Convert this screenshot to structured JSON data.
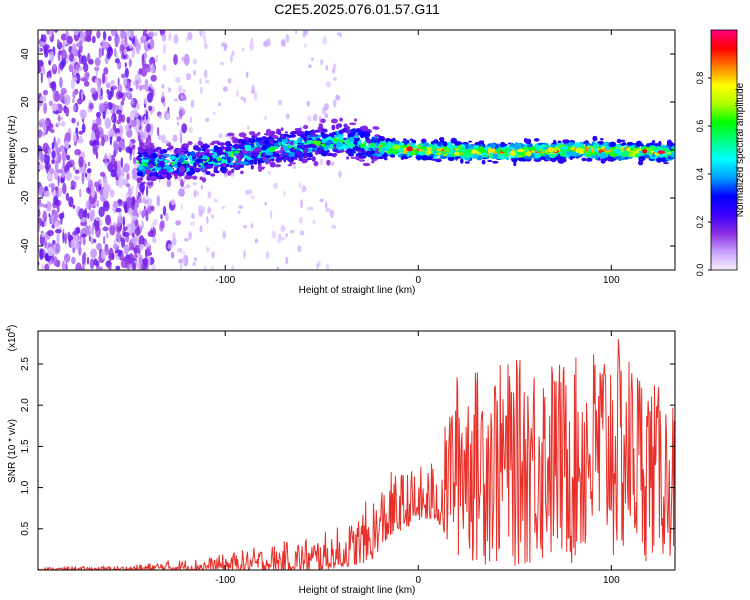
{
  "title": "C2E5.2025.076.01.57.G11",
  "chart_data": [
    {
      "type": "heatmap",
      "xlabel": "Height of straight line (km)",
      "ylabel": "Frequency (Hz)",
      "xlim": [
        -197,
        133
      ],
      "ylim": [
        -50,
        50
      ],
      "xticks": [
        -100,
        0,
        100
      ],
      "yticks": [
        -40,
        -20,
        0,
        20,
        40
      ],
      "colorbar": {
        "label": "Normalized spectral amplitude",
        "range": [
          0,
          1
        ],
        "ticks": [
          0.0,
          0.2,
          0.4,
          0.6,
          0.8
        ],
        "colormap": [
          "#f8f0ff",
          "#c8a0ff",
          "#8a2be2",
          "#3a00ff",
          "#0000ff",
          "#00a0ff",
          "#00ffff",
          "#00ff80",
          "#00ff00",
          "#b0ff00",
          "#ffff00",
          "#ff8000",
          "#ff0000",
          "#ff0080"
        ]
      },
      "ridge": [
        {
          "x": -190,
          "y": 0
        },
        {
          "x": -140,
          "y": -6
        },
        {
          "x": -120,
          "y": -5
        },
        {
          "x": -100,
          "y": -3
        },
        {
          "x": -80,
          "y": 0
        },
        {
          "x": -60,
          "y": 2
        },
        {
          "x": -40,
          "y": 4
        },
        {
          "x": -30,
          "y": 3
        },
        {
          "x": -20,
          "y": 1
        },
        {
          "x": 0,
          "y": 0
        },
        {
          "x": 40,
          "y": -1
        },
        {
          "x": 80,
          "y": 0
        },
        {
          "x": 133,
          "y": -1
        }
      ]
    },
    {
      "type": "line",
      "xlabel": "Height of straight line (km)",
      "ylabel": "SNR (10 * v/v)",
      "multiplier_label": "(x10",
      "multiplier_exp": "4",
      "multiplier_close": ")",
      "xlim": [
        -197,
        133
      ],
      "ylim": [
        0,
        2.9
      ],
      "xticks": [
        -100,
        0,
        100
      ],
      "yticks": [
        0.5,
        1.0,
        1.5,
        2.0,
        2.5
      ],
      "series": [
        {
          "color": "#e8302a",
          "envelope": [
            {
              "x": -197,
              "min": 0.0,
              "max": 0.03
            },
            {
              "x": -150,
              "min": 0.0,
              "max": 0.05
            },
            {
              "x": -130,
              "min": 0.0,
              "max": 0.12
            },
            {
              "x": -110,
              "min": 0.0,
              "max": 0.15
            },
            {
              "x": -90,
              "min": 0.0,
              "max": 0.25
            },
            {
              "x": -70,
              "min": 0.0,
              "max": 0.35
            },
            {
              "x": -50,
              "min": 0.0,
              "max": 0.45
            },
            {
              "x": -35,
              "min": 0.05,
              "max": 0.6
            },
            {
              "x": -25,
              "min": 0.1,
              "max": 0.9
            },
            {
              "x": -15,
              "min": 0.4,
              "max": 1.2
            },
            {
              "x": 0,
              "min": 0.6,
              "max": 1.25
            },
            {
              "x": 10,
              "min": 0.6,
              "max": 1.4
            },
            {
              "x": 20,
              "min": 0.1,
              "max": 2.4
            },
            {
              "x": 40,
              "min": 0.0,
              "max": 2.5
            },
            {
              "x": 60,
              "min": 0.0,
              "max": 2.6
            },
            {
              "x": 80,
              "min": 0.0,
              "max": 2.55
            },
            {
              "x": 100,
              "min": 0.0,
              "max": 2.9
            },
            {
              "x": 115,
              "min": 0.1,
              "max": 2.5
            },
            {
              "x": 133,
              "min": 0.1,
              "max": 2.0
            }
          ]
        }
      ]
    }
  ]
}
